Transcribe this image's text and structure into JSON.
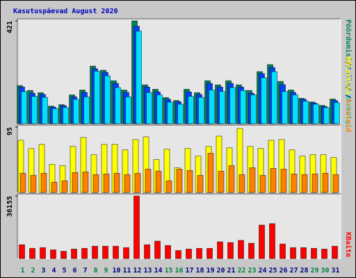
{
  "label_separator": "/",
  "chart_data": [
    {
      "type": "bar",
      "title": "Kasutuspäevad August 2020",
      "categories": [
        "1",
        "2",
        "3",
        "4",
        "5",
        "6",
        "7",
        "8",
        "9",
        "10",
        "11",
        "12",
        "13",
        "14",
        "15",
        "16",
        "17",
        "18",
        "19",
        "20",
        "21",
        "22",
        "23",
        "24",
        "25",
        "26",
        "27",
        "28",
        "29",
        "30",
        "31"
      ],
      "category_colors": [
        "#008040",
        "#008040",
        "#000080",
        "#000080",
        "#000080",
        "#000080",
        "#000080",
        "#008040",
        "#008040",
        "#000080",
        "#000080",
        "#000080",
        "#000080",
        "#000080",
        "#008040",
        "#008040",
        "#000080",
        "#000080",
        "#000080",
        "#000080",
        "#000080",
        "#008040",
        "#008040",
        "#000080",
        "#000080",
        "#000080",
        "#000080",
        "#000080",
        "#008040",
        "#008040",
        "#000080"
      ],
      "ylim": [
        0,
        421
      ],
      "yticks": [
        421
      ],
      "series": [
        {
          "name": "Pöördumisi",
          "color": "#00805c",
          "values": [
            156,
            136,
            127,
            72,
            78,
            118,
            138,
            236,
            219,
            176,
            138,
            421,
            159,
            141,
            107,
            95,
            141,
            127,
            176,
            159,
            176,
            159,
            136,
            213,
            242,
            173,
            138,
            104,
            89,
            75,
            101
          ]
        },
        {
          "name": "Faile",
          "color": "#0040ff",
          "values": [
            150,
            125,
            120,
            68,
            74,
            110,
            128,
            225,
            210,
            165,
            128,
            399,
            150,
            130,
            100,
            90,
            130,
            120,
            165,
            150,
            165,
            150,
            125,
            205,
            230,
            160,
            128,
            100,
            85,
            70,
            95
          ]
        },
        {
          "name": "Lehekülgi",
          "color": "#00e0ff",
          "values": [
            132,
            112,
            108,
            62,
            66,
            100,
            110,
            215,
            196,
            148,
            110,
            379,
            128,
            118,
            88,
            80,
            112,
            108,
            138,
            132,
            148,
            136,
            118,
            188,
            213,
            132,
            118,
            92,
            80,
            66,
            86
          ]
        }
      ]
    },
    {
      "type": "bar",
      "ylim": [
        0,
        95
      ],
      "yticks": [
        95
      ],
      "series": [
        {
          "name": "Külastusi",
          "color": "#ffff00",
          "values": [
            76,
            64,
            70,
            41,
            39,
            67,
            80,
            55,
            70,
            70,
            62,
            77,
            81,
            48,
            63,
            36,
            64,
            53,
            67,
            82,
            65,
            93,
            67,
            64,
            76,
            77,
            62,
            53,
            55,
            55,
            51
          ]
        },
        {
          "name": "Arvuteid",
          "color": "#ff8000",
          "values": [
            28,
            25,
            28,
            15,
            17,
            29,
            30,
            26,
            27,
            28,
            26,
            28,
            34,
            31,
            17,
            34,
            32,
            25,
            57,
            31,
            39,
            26,
            36,
            25,
            35,
            34,
            27,
            26,
            27,
            28,
            26
          ]
        }
      ]
    },
    {
      "type": "bar",
      "ylim": [
        0,
        36155
      ],
      "yticks": [
        36155
      ],
      "series": [
        {
          "name": "KBaite",
          "color": "#ff0000",
          "values": [
            7990,
            5890,
            6310,
            5040,
            4200,
            5470,
            5890,
            7150,
            7150,
            7150,
            6310,
            36155,
            7990,
            10090,
            7570,
            4620,
            5470,
            5890,
            5890,
            9670,
            9250,
            10510,
            8830,
            19340,
            20180,
            8410,
            6310,
            6310,
            5890,
            5470,
            7150
          ]
        }
      ]
    }
  ]
}
